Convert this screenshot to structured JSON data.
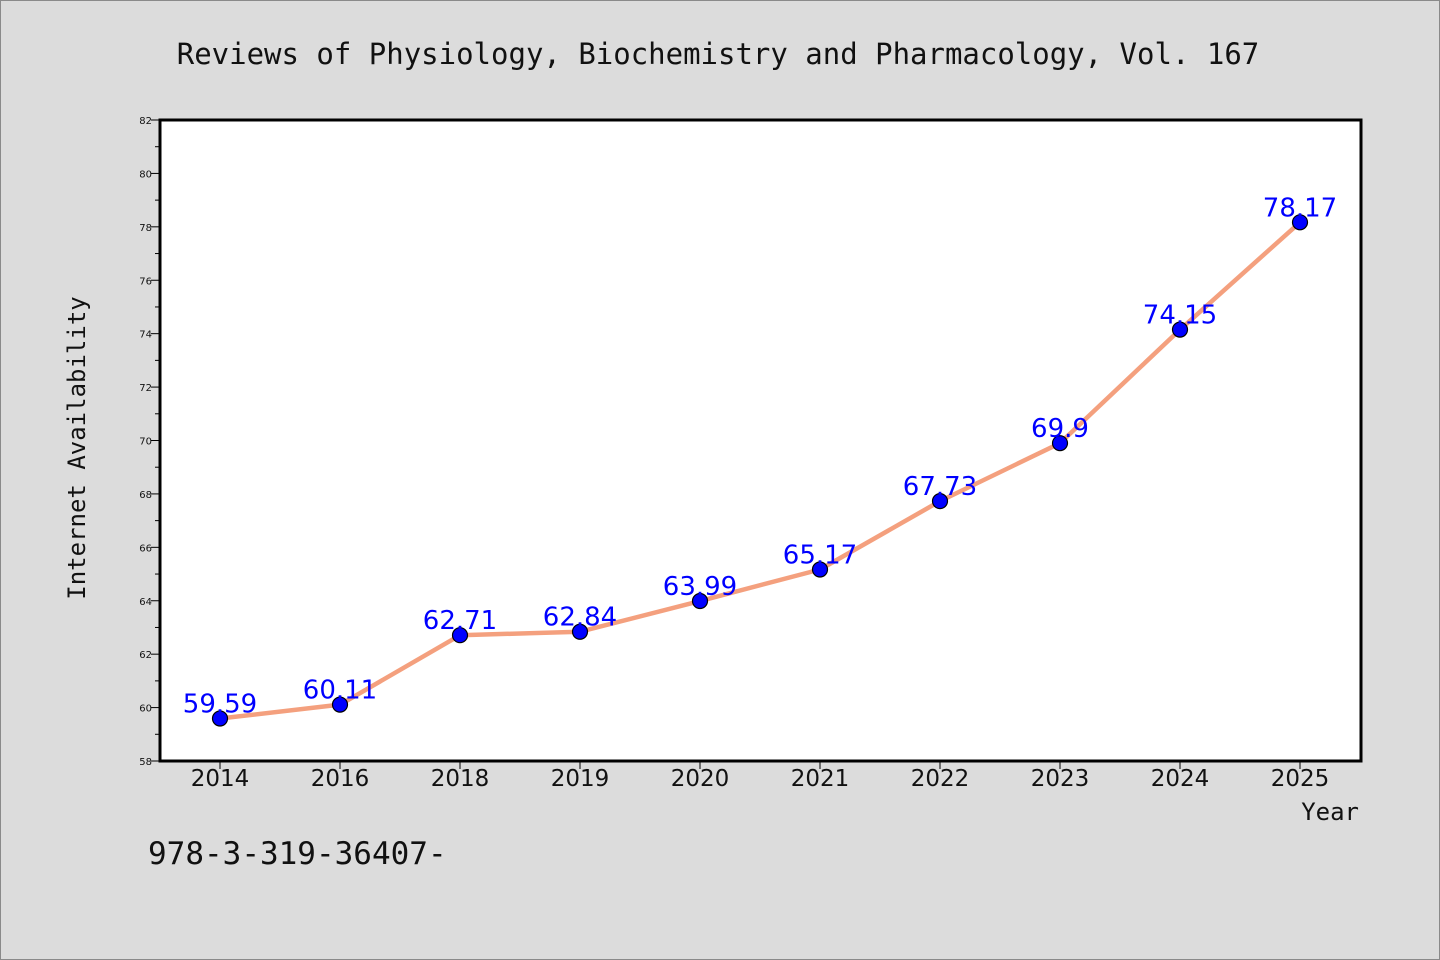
{
  "chart_data": {
    "type": "line",
    "title": "Reviews of Physiology, Biochemistry and Pharmacology, Vol. 167",
    "xlabel": "Year",
    "ylabel": "Internet Availability",
    "categories": [
      "2014",
      "2016",
      "2018",
      "2019",
      "2020",
      "2021",
      "2022",
      "2023",
      "2024",
      "2025"
    ],
    "series": [
      {
        "values": [
          59.59,
          60.11,
          62.71,
          62.84,
          63.99,
          65.17,
          67.73,
          69.9,
          74.15,
          78.17
        ],
        "line_color": "#f4a07e",
        "marker_color": "#0000ff",
        "label_color": "#0000ff"
      }
    ],
    "ylim": [
      58,
      82
    ],
    "y_ticks": [
      58,
      60,
      62,
      64,
      66,
      68,
      70,
      72,
      74,
      76,
      78,
      80,
      82
    ],
    "grid": false,
    "legend": "none"
  },
  "footnote": "978-3-319-36407-",
  "colors": {
    "background": "#dcdcdc",
    "plot_background": "#ffffff",
    "axis": "#000000"
  }
}
